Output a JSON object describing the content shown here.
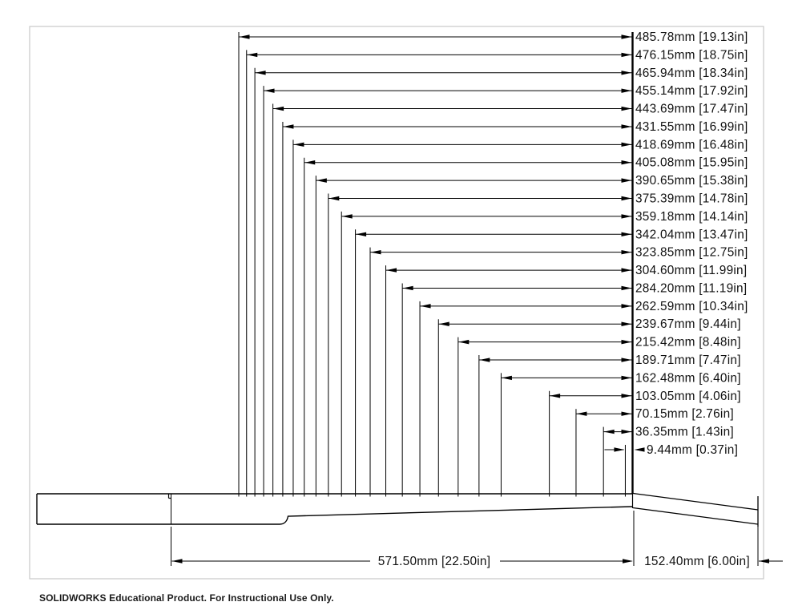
{
  "drawing": {
    "type": "technical-dimension-drawing",
    "subject": "guitar neck side profile with fret position dimensions",
    "frets": [
      {
        "mm": 485.78,
        "in": 19.13,
        "label": "485.78mm [19.13in]"
      },
      {
        "mm": 476.15,
        "in": 18.75,
        "label": "476.15mm [18.75in]"
      },
      {
        "mm": 465.94,
        "in": 18.34,
        "label": "465.94mm [18.34in]"
      },
      {
        "mm": 455.14,
        "in": 17.92,
        "label": "455.14mm [17.92in]"
      },
      {
        "mm": 443.69,
        "in": 17.47,
        "label": "443.69mm [17.47in]"
      },
      {
        "mm": 431.55,
        "in": 16.99,
        "label": "431.55mm [16.99in]"
      },
      {
        "mm": 418.69,
        "in": 16.48,
        "label": "418.69mm [16.48in]"
      },
      {
        "mm": 405.08,
        "in": 15.95,
        "label": "405.08mm [15.95in]"
      },
      {
        "mm": 390.65,
        "in": 15.38,
        "label": "390.65mm [15.38in]"
      },
      {
        "mm": 375.39,
        "in": 14.78,
        "label": "375.39mm [14.78in]"
      },
      {
        "mm": 359.18,
        "in": 14.14,
        "label": "359.18mm [14.14in]"
      },
      {
        "mm": 342.04,
        "in": 13.47,
        "label": "342.04mm [13.47in]"
      },
      {
        "mm": 323.85,
        "in": 12.75,
        "label": "323.85mm [12.75in]"
      },
      {
        "mm": 304.6,
        "in": 11.99,
        "label": "304.60mm [11.99in]"
      },
      {
        "mm": 284.2,
        "in": 11.19,
        "label": "284.20mm [11.19in]"
      },
      {
        "mm": 262.59,
        "in": 10.34,
        "label": "262.59mm [10.34in]"
      },
      {
        "mm": 239.67,
        "in": 9.44,
        "label": "239.67mm [9.44in]"
      },
      {
        "mm": 215.42,
        "in": 8.48,
        "label": "215.42mm [8.48in]"
      },
      {
        "mm": 189.71,
        "in": 7.47,
        "label": "189.71mm [7.47in]"
      },
      {
        "mm": 162.48,
        "in": 6.4,
        "label": "162.48mm [6.40in]"
      },
      {
        "mm": 103.05,
        "in": 4.06,
        "label": "103.05mm [4.06in]"
      },
      {
        "mm": 70.15,
        "in": 2.76,
        "label": "70.15mm [2.76in]"
      },
      {
        "mm": 36.35,
        "in": 1.43,
        "label": "36.35mm [1.43in]"
      },
      {
        "mm": 9.44,
        "in": 0.37,
        "label": "9.44mm [0.37in]"
      }
    ],
    "bottom_dims": [
      {
        "mm": 571.5,
        "in": 22.5,
        "label": "571.50mm [22.50in]"
      },
      {
        "mm": 152.4,
        "in": 6.0,
        "label": "152.40mm [6.00in]"
      }
    ]
  },
  "footer": {
    "text": "SOLIDWORKS Educational Product. For Instructional Use Only."
  },
  "colors": {
    "background": "#ffffff",
    "line": "#000000",
    "sheet_border": "#c8c8c8",
    "text": "#111111"
  }
}
